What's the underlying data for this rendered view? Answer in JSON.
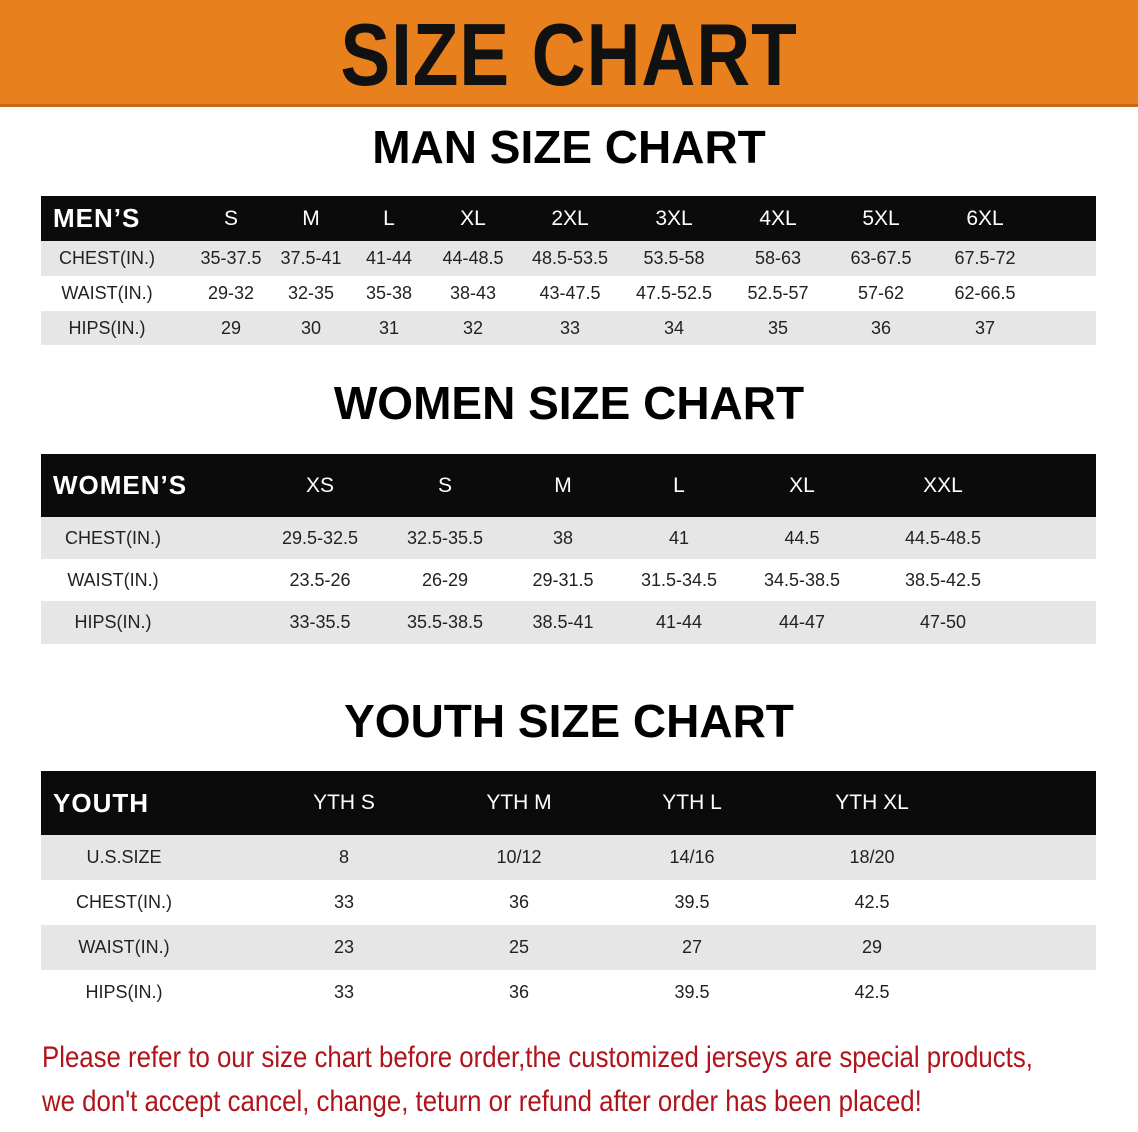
{
  "banner_title": "SIZE CHART",
  "colors": {
    "banner": "#e9801e",
    "header_row": "#0b0b0b",
    "stripe": "#e6e6e6",
    "note": "#b0141a"
  },
  "men": {
    "title": "MAN SIZE CHART",
    "header": [
      "MEN’S",
      "S",
      "M",
      "L",
      "XL",
      "2XL",
      "3XL",
      "4XL",
      "5XL",
      "6XL"
    ],
    "rows": [
      [
        "CHEST(IN.)",
        "35-37.5",
        "37.5-41",
        "41-44",
        "44-48.5",
        "48.5-53.5",
        "53.5-58",
        "58-63",
        "63-67.5",
        "67.5-72"
      ],
      [
        "WAIST(IN.)",
        "29-32",
        "32-35",
        "35-38",
        "38-43",
        "43-47.5",
        "47.5-52.5",
        "52.5-57",
        "57-62",
        "62-66.5"
      ],
      [
        "HIPS(IN.)",
        "29",
        "30",
        "31",
        "32",
        "33",
        "34",
        "35",
        "36",
        "37"
      ]
    ]
  },
  "women": {
    "title": "WOMEN SIZE CHART",
    "header": [
      "WOMEN’S",
      "XS",
      "S",
      "M",
      "L",
      "XL",
      "XXL"
    ],
    "rows": [
      [
        "CHEST(IN.)",
        "29.5-32.5",
        "32.5-35.5",
        "38",
        "41",
        "44.5",
        "44.5-48.5"
      ],
      [
        "WAIST(IN.)",
        "23.5-26",
        "26-29",
        "29-31.5",
        "31.5-34.5",
        "34.5-38.5",
        "38.5-42.5"
      ],
      [
        "HIPS(IN.)",
        "33-35.5",
        "35.5-38.5",
        "38.5-41",
        "41-44",
        "44-47",
        "47-50"
      ]
    ]
  },
  "youth": {
    "title": "YOUTH SIZE CHART",
    "header": [
      "YOUTH",
      "YTH S",
      "YTH M",
      "YTH L",
      "YTH XL"
    ],
    "rows": [
      [
        "U.S.SIZE",
        "8",
        "10/12",
        "14/16",
        "18/20"
      ],
      [
        "CHEST(IN.)",
        "33",
        "36",
        "39.5",
        "42.5"
      ],
      [
        "WAIST(IN.)",
        "23",
        "25",
        "27",
        "29"
      ],
      [
        "HIPS(IN.)",
        "33",
        "36",
        "39.5",
        "42.5"
      ]
    ]
  },
  "note": [
    "Please refer to our size chart before order,the customized jerseys are special products,",
    "we don't accept cancel, change, teturn or refund after order has been placed!"
  ]
}
